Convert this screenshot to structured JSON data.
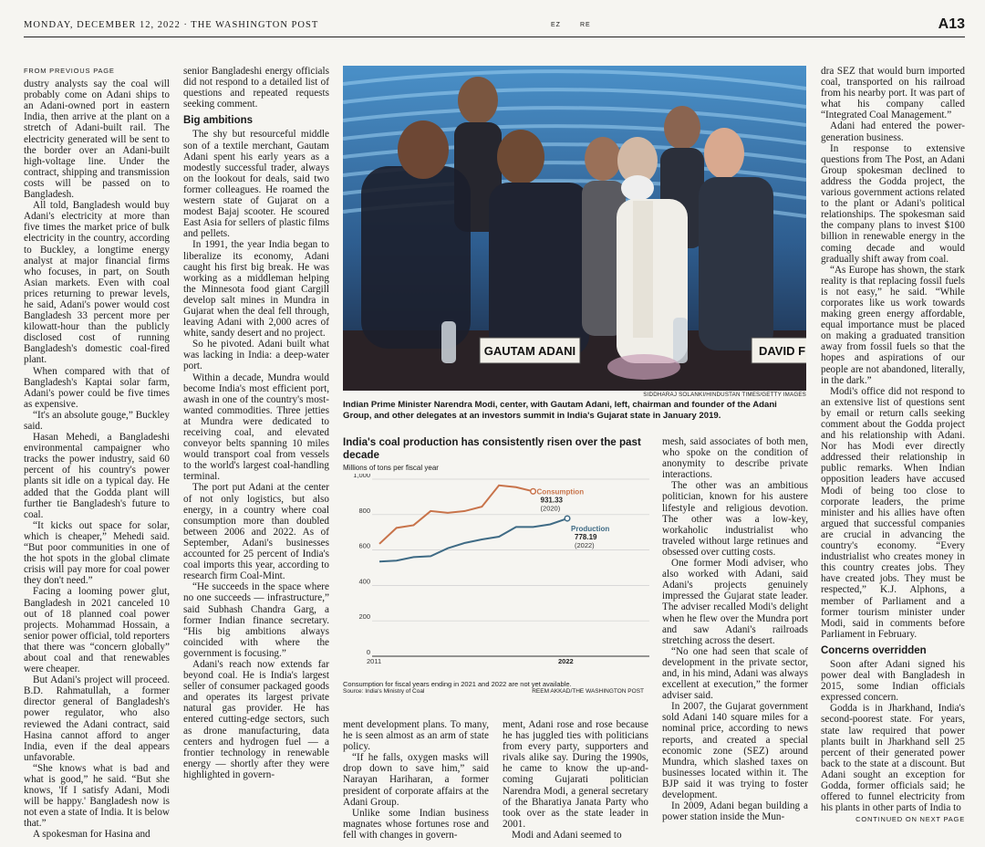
{
  "masthead": {
    "date_paper": "MONDAY, DECEMBER 12, 2022 · THE WASHINGTON POST",
    "ez": "EZ",
    "re": "RE",
    "page": "A13"
  },
  "col1": {
    "kicker": "FROM PREVIOUS PAGE",
    "paragraphs": [
      "dustry analysts say the coal will probably come on Adani ships to an Adani-owned port in eastern India, then arrive at the plant on a stretch of Adani-built rail. The electricity generated will be sent to the border over an Adani-built high-voltage line. Under the contract, shipping and transmission costs will be passed on to Bangladesh.",
      "All told, Bangladesh would buy Adani's electricity at more than five times the market price of bulk electricity in the country, according to Buckley, a longtime energy analyst at major financial firms who focuses, in part, on South Asian markets. Even with coal prices returning to prewar levels, he said, Adani's power would cost Bangladesh 33 percent more per kilowatt-hour than the publicly disclosed cost of running Bangladesh's domestic coal-fired plant.",
      "When compared with that of Bangladesh's Kaptai solar farm, Adani's power could be five times as expensive.",
      "“It's an absolute gouge,” Buckley said.",
      "Hasan Mehedi, a Bangladeshi environmental campaigner who tracks the power industry, said 60 percent of his country's power plants sit idle on a typical day. He added that the Godda plant will further tie Bangladesh's future to coal.",
      "“It kicks out space for solar, which is cheaper,” Mehedi said. “But poor communities in one of the hot spots in the global climate crisis will pay more for coal power they don't need.”",
      "Facing a looming power glut, Bangladesh in 2021 canceled 10 out of 18 planned coal power projects. Mohammad Hossain, a senior power official, told reporters that there was “concern globally” about coal and that renewables were cheaper.",
      "But Adani's project will proceed. B.D. Rahmatullah, a former director general of Bangladesh's power regulator, who also reviewed the Adani contract, said Hasina cannot afford to anger India, even if the deal appears unfavorable.",
      "“She knows what is bad and what is good,” he said. “But she knows, 'If I satisfy Adani, Modi will be happy.' Bangladesh now is not even a state of India. It is below that.”",
      "A spokesman for Hasina and"
    ]
  },
  "col2": {
    "para_before": "senior Bangladeshi energy officials did not respond to a detailed list of questions and repeated requests seeking comment.",
    "subhead": "Big ambitions",
    "paragraphs": [
      "The shy but resourceful middle son of a textile merchant, Gautam Adani spent his early years as a modestly successful trader, always on the lookout for deals, said two former colleagues. He roamed the western state of Gujarat on a modest Bajaj scooter. He scoured East Asia for sellers of plastic films and pellets.",
      "In 1991, the year India began to liberalize its economy, Adani caught his first big break. He was working as a middleman helping the Minnesota food giant Cargill develop salt mines in Mundra in Gujarat when the deal fell through, leaving Adani with 2,000 acres of white, sandy desert and no project.",
      "So he pivoted. Adani built what was lacking in India: a deep-water port.",
      "Within a decade, Mundra would become India's most efficient port, awash in one of the country's most-wanted commodities. Three jetties at Mundra were dedicated to receiving coal, and elevated conveyor belts spanning 10 miles would transport coal from vessels to the world's largest coal-handling terminal.",
      "The port put Adani at the center of not only logistics, but also energy, in a country where coal consumption more than doubled between 2006 and 2022. As of September, Adani's businesses accounted for 25 percent of India's coal imports this year, according to research firm Coal-Mint.",
      "“He succeeds in the space where no one succeeds — infrastructure,” said Subhash Chandra Garg, a former Indian finance secretary. “His big ambitions always coincided with where the government is focusing.”",
      "Adani's reach now extends far beyond coal. He is India's largest seller of consumer packaged goods and operates its largest private natural gas provider. He has entered cutting-edge sectors, such as drone manufacturing, data centers and hydrogen fuel — a frontier technology in renewable energy — shortly after they were highlighted in govern-"
    ]
  },
  "photo": {
    "credit": "SIDDHARAJ SOLANKI/HINDUSTAN TIMES/GETTY IMAGES",
    "nameplate_left": "GAUTAM ADANI",
    "nameplate_right": "DAVID F",
    "caption": "Indian Prime Minister Narendra Modi, center, with Gautam Adani, left, chairman and founder of the Adani Group, and other delegates at an investors summit in India's Gujarat state in January 2019."
  },
  "chart_data": {
    "type": "line",
    "title": "India's coal production has consistently risen over the past decade",
    "ylabel": "Millions of tons per fiscal year",
    "x": [
      2011,
      2012,
      2013,
      2014,
      2015,
      2016,
      2017,
      2018,
      2019,
      2020,
      2021,
      2022
    ],
    "x_tick_labels": [
      "2011",
      "2022"
    ],
    "ylim": [
      0,
      1000
    ],
    "y_ticks": [
      0,
      200,
      400,
      600,
      800,
      "1,000"
    ],
    "series": [
      {
        "name": "Consumption",
        "color": "#c8734a",
        "values": [
          635,
          725,
          740,
          820,
          810,
          820,
          845,
          965,
          955,
          931.33,
          null,
          null
        ],
        "end_label": "931.33",
        "end_year": "(2020)"
      },
      {
        "name": "Production",
        "color": "#3f6b85",
        "values": [
          535,
          540,
          560,
          565,
          610,
          640,
          660,
          675,
          730,
          730,
          745,
          778.19
        ],
        "end_label": "778.19",
        "end_year": "(2022)"
      }
    ],
    "note": "Consumption for fiscal years ending in 2021 and 2022 are not yet available.",
    "source": "Source: India's Ministry of Coal",
    "credit": "REEM AKKAD/THE WASHINGTON POST"
  },
  "col3": "ment development plans. To many, he is seen almost as an arm of state policy.|“If he falls, oxygen masks will drop down to save him,” said Narayan Hariharan, a former president of corporate affairs at the Adani Group.|Unlike some Indian business magnates whose fortunes rose and fell with changes in govern-",
  "col4": "ment, Adani rose and rose because he has juggled ties with politicians from every party, supporters and rivals alike say. During the 1990s, he came to know the up-and-coming Gujarati politician Narendra Modi, a general secretary of the Bharatiya Janata Party who took over as the state leader in 2001.|Modi and Adani seemed to",
  "col5": {
    "paragraphs": [
      "mesh, said associates of both men, who spoke on the condition of anonymity to describe private interactions.",
      "The other was an ambitious politician, known for his austere lifestyle and religious devotion. The other was a low-key, workaholic industrialist who traveled without large retinues and obsessed over cutting costs.",
      "One former Modi adviser, who also worked with Adani, said Adani's projects genuinely impressed the Gujarat state leader. The adviser recalled Modi's delight when he flew over the Mundra port and saw Adani's railroads stretching across the desert.",
      "“No one had seen that scale of development in the private sector, and, in his mind, Adani was always excellent at execution,” the former adviser said.",
      "In 2007, the Gujarat government sold Adani 140 square miles for a nominal price, according to news reports, and created a special economic zone (SEZ) around Mundra, which slashed taxes on businesses located within it. The BJP said it was trying to foster development.",
      "In 2009, Adani began building a power station inside the Mun-"
    ]
  },
  "col6": {
    "para_before": "dra SEZ that would burn imported coal, transported on his railroad from his nearby port. It was part of what his company called “Integrated Coal Management.”",
    "paragraphs": [
      "Adani had entered the power-generation business.",
      "In response to extensive questions from The Post, an Adani Group spokesman declined to address the Godda project, the various government actions related to the plant or Adani's political relationships. The spokesman said the company plans to invest $100 billion in renewable energy in the coming decade and would gradually shift away from coal.",
      "“As Europe has shown, the stark reality is that replacing fossil fuels is not easy,” he said. “While corporates like us work towards making green energy affordable, equal importance must be placed on making a graduated transition away from fossil fuels so that the hopes and aspirations of our people are not abandoned, literally, in the dark.”",
      "Modi's office did not respond to an extensive list of questions sent by email or return calls seeking comment about the Godda project and his relationship with Adani. Nor has Modi ever directly addressed their relationship in public remarks. When Indian opposition leaders have accused Modi of being too close to corporate leaders, the prime minister and his allies have often argued that successful companies are crucial in advancing the country's economy. “Every industrialist who creates money in this country creates jobs. They have created jobs. They must be respected,” K.J. Alphons, a member of Parliament and a former tourism minister under Modi, said in comments before Parliament in February."
    ],
    "subhead": "Concerns overridden",
    "paragraphs2": [
      "Soon after Adani signed his power deal with Bangladesh in 2015, some Indian officials expressed concern.",
      "Godda is in Jharkhand, India's second-poorest state. For years, state law required that power plants built in Jharkhand sell 25 percent of their generated power back to the state at a discount. But Adani sought an exception for Godda, former officials said; he offered to funnel electricity from his plants in other parts of India to"
    ],
    "continued": "CONTINUED ON NEXT PAGE"
  }
}
